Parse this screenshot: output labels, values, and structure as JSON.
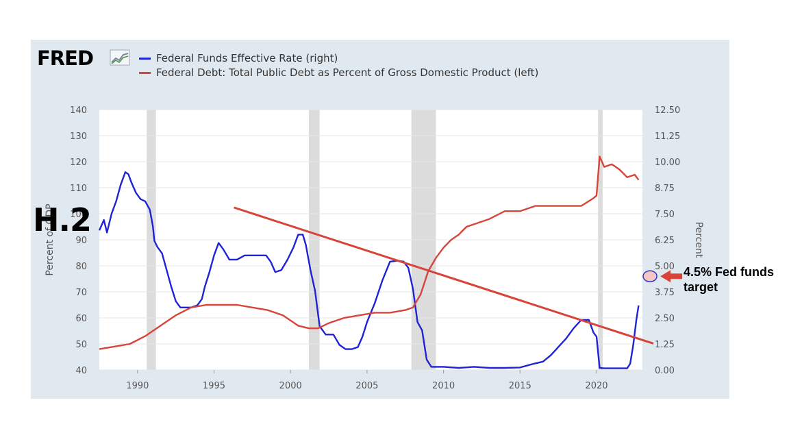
{
  "logo": {
    "text": "FRED"
  },
  "chart_data": {
    "type": "line",
    "xlim": [
      1987.5,
      2023.0
    ],
    "ylim_left": [
      40,
      140
    ],
    "ylim_right": [
      0,
      12.5
    ],
    "yticks_left": [
      "40",
      "50",
      "60",
      "70",
      "80",
      "90",
      "100",
      "110",
      "120",
      "130",
      "140"
    ],
    "yticks_right": [
      "0.00",
      "1.25",
      "2.50",
      "3.75",
      "5.00",
      "6.25",
      "7.50",
      "8.75",
      "10.00",
      "11.25",
      "12.50"
    ],
    "xticks": [
      "1990",
      "1995",
      "2000",
      "2005",
      "2010",
      "2015",
      "2020"
    ],
    "ylabel_left": "Percent of GDP",
    "ylabel_right": "Percent",
    "grid": true,
    "recessions": [
      [
        1990.6,
        1991.2
      ],
      [
        2001.2,
        2001.9
      ],
      [
        2007.9,
        2009.5
      ],
      [
        2020.1,
        2020.4
      ]
    ],
    "colors": {
      "fed": "#1f22d6",
      "debt": "#d7443a",
      "trend": "#d7443a",
      "recession": "#dcdcdc",
      "plot_bg": "#ffffff",
      "panel_bg": "#e1e9f0"
    },
    "series": [
      {
        "name": "Federal Funds Effective Rate (right)",
        "axis": "right",
        "x": [
          1987.5,
          1987.8,
          1988.0,
          1988.3,
          1988.6,
          1988.9,
          1989.2,
          1989.4,
          1989.6,
          1989.9,
          1990.2,
          1990.5,
          1990.8,
          1991.0,
          1991.1,
          1991.3,
          1991.6,
          1991.9,
          1992.2,
          1992.5,
          1992.8,
          1993.1,
          1993.5,
          1993.9,
          1994.2,
          1994.4,
          1994.7,
          1995.0,
          1995.3,
          1995.6,
          1996.0,
          1996.5,
          1997.0,
          1997.5,
          1998.0,
          1998.4,
          1998.7,
          1999.0,
          1999.4,
          1999.8,
          2000.2,
          2000.5,
          2000.8,
          2001.0,
          2001.3,
          2001.6,
          2001.9,
          2002.3,
          2002.8,
          2003.2,
          2003.6,
          2004.0,
          2004.4,
          2004.7,
          2005.0,
          2005.5,
          2006.0,
          2006.5,
          2007.0,
          2007.4,
          2007.7,
          2008.0,
          2008.3,
          2008.6,
          2008.9,
          2009.2,
          2009.6,
          2010.0,
          2011.0,
          2012.0,
          2013.0,
          2014.0,
          2015.0,
          2015.9,
          2016.5,
          2017.0,
          2017.5,
          2018.0,
          2018.5,
          2019.0,
          2019.5,
          2019.8,
          2020.0,
          2020.2,
          2020.5,
          2021.0,
          2021.5,
          2021.8,
          2022.0,
          2022.2,
          2022.4,
          2022.6,
          2022.75
        ],
        "y": [
          6.7,
          7.2,
          6.6,
          7.5,
          8.1,
          8.9,
          9.5,
          9.4,
          9.0,
          8.5,
          8.2,
          8.1,
          7.7,
          6.9,
          6.2,
          5.9,
          5.6,
          4.8,
          4.0,
          3.3,
          3.0,
          3.0,
          3.0,
          3.1,
          3.4,
          4.0,
          4.7,
          5.5,
          6.1,
          5.8,
          5.3,
          5.3,
          5.5,
          5.5,
          5.5,
          5.5,
          5.2,
          4.7,
          4.8,
          5.3,
          5.9,
          6.5,
          6.5,
          6.0,
          4.8,
          3.8,
          2.1,
          1.7,
          1.7,
          1.2,
          1.0,
          1.0,
          1.1,
          1.6,
          2.3,
          3.2,
          4.3,
          5.2,
          5.25,
          5.2,
          4.9,
          3.9,
          2.3,
          1.9,
          0.5,
          0.15,
          0.15,
          0.15,
          0.1,
          0.15,
          0.1,
          0.1,
          0.12,
          0.3,
          0.4,
          0.7,
          1.1,
          1.5,
          2.0,
          2.4,
          2.4,
          1.8,
          1.6,
          0.1,
          0.08,
          0.08,
          0.08,
          0.08,
          0.08,
          0.3,
          1.2,
          2.4,
          3.1
        ]
      },
      {
        "name": "Federal Debt: Total Public Debt as Percent of Gross Domestic Product (left)",
        "axis": "left",
        "x": [
          1987.5,
          1988.5,
          1989.5,
          1990.5,
          1991.5,
          1992.5,
          1993.5,
          1994.5,
          1995.5,
          1996.5,
          1997.5,
          1998.5,
          1999.5,
          2000.5,
          2001.2,
          2001.8,
          2002.5,
          2003.5,
          2004.5,
          2005.5,
          2006.5,
          2007.5,
          2008.0,
          2008.5,
          2009.0,
          2009.5,
          2010.0,
          2010.5,
          2011.0,
          2011.5,
          2012.0,
          2013.0,
          2014.0,
          2015.0,
          2016.0,
          2017.0,
          2018.0,
          2019.0,
          2019.8,
          2020.0,
          2020.2,
          2020.5,
          2021.0,
          2021.5,
          2022.0,
          2022.5,
          2022.75
        ],
        "y": [
          48,
          49,
          50,
          53,
          57,
          61,
          64,
          65,
          65,
          65,
          64,
          63,
          61,
          57,
          56,
          56,
          58,
          60,
          61,
          62,
          62,
          63,
          64,
          69,
          78,
          83,
          87,
          90,
          92,
          95,
          96,
          98,
          101,
          101,
          103,
          103,
          103,
          103,
          106,
          107,
          122,
          118,
          119,
          117,
          114,
          115,
          113
        ]
      }
    ],
    "trendline": {
      "x": [
        1996.3,
        2023.0
      ],
      "y": [
        7.8,
        1.4
      ],
      "axis": "right"
    },
    "target_marker": {
      "x": 2022.6,
      "y": 4.5,
      "axis": "right",
      "label": "4.5% Fed funds target"
    }
  },
  "annotations": {
    "heading": "H.2",
    "fed_target": "4.5% Fed funds target"
  }
}
